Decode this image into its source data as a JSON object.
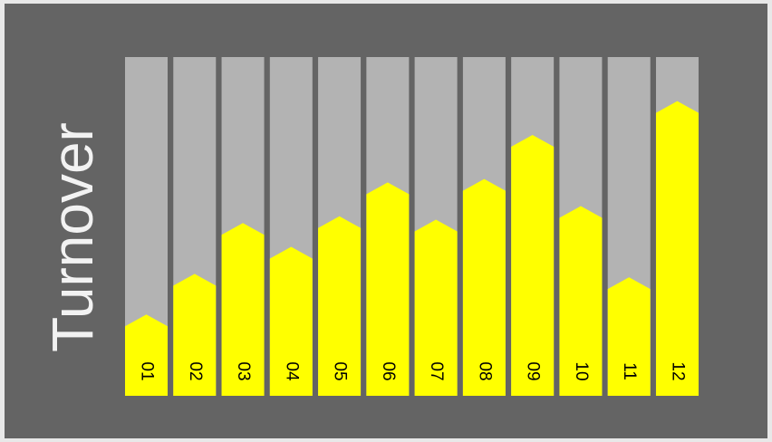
{
  "chart_data": {
    "type": "bar",
    "title": "Turnover",
    "categories": [
      "01",
      "02",
      "03",
      "04",
      "05",
      "06",
      "07",
      "08",
      "09",
      "10",
      "11",
      "12"
    ],
    "values": [
      24,
      36,
      51,
      44,
      53,
      63,
      52,
      64,
      77,
      56,
      35,
      87
    ],
    "color": "#ffff00",
    "track_color": "#b3b3b3",
    "ylim": [
      0,
      100
    ]
  }
}
